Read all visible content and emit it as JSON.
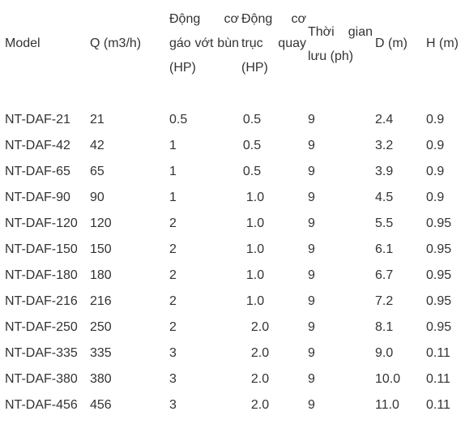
{
  "table": {
    "header": [
      "Model",
      "Q (m3/h)",
      "Động cơ gáo vớt bùn (HP)",
      "Động cơ trục quay (HP)",
      "Thời gian lưu (ph)",
      "D (m)",
      "H (m)"
    ],
    "rows": [
      [
        "NT-DAF-21",
        "21",
        "0.5",
        "0.5",
        "9",
        "2.4",
        "0.9"
      ],
      [
        "NT-DAF-42",
        "42",
        "1",
        "0.5",
        "9",
        "3.2",
        "0.9"
      ],
      [
        "NT-DAF-65",
        "65",
        "1",
        "0.5",
        "9",
        "3.9",
        "0.9"
      ],
      [
        "NT-DAF-90",
        "90",
        "1",
        "1.0",
        "9",
        "4.5",
        "0.9"
      ],
      [
        "NT-DAF-120",
        "120",
        "2",
        "1.0",
        "9",
        "5.5",
        "0.95"
      ],
      [
        "NT-DAF-150",
        "150",
        "2",
        "1.0",
        "9",
        "6.1",
        "0.95"
      ],
      [
        "NT-DAF-180",
        "180",
        "2",
        "1.0",
        "9",
        "6.7",
        "0.95"
      ],
      [
        "NT-DAF-216",
        "216",
        "2",
        "1.0",
        "9",
        "7.2",
        "0.95"
      ],
      [
        "NT-DAF-250",
        "250",
        "2",
        "2.0",
        "9",
        "8.1",
        "0.95"
      ],
      [
        "NT-DAF-335",
        "335",
        "3",
        "2.0",
        "9",
        "9.0",
        "0.11"
      ],
      [
        "NT-DAF-380",
        "380",
        "3",
        "2.0",
        "9",
        "10.0",
        "0.11"
      ],
      [
        "NT-DAF-456",
        "456",
        "3",
        "2.0",
        "9",
        "11.0",
        "0.11"
      ]
    ]
  }
}
